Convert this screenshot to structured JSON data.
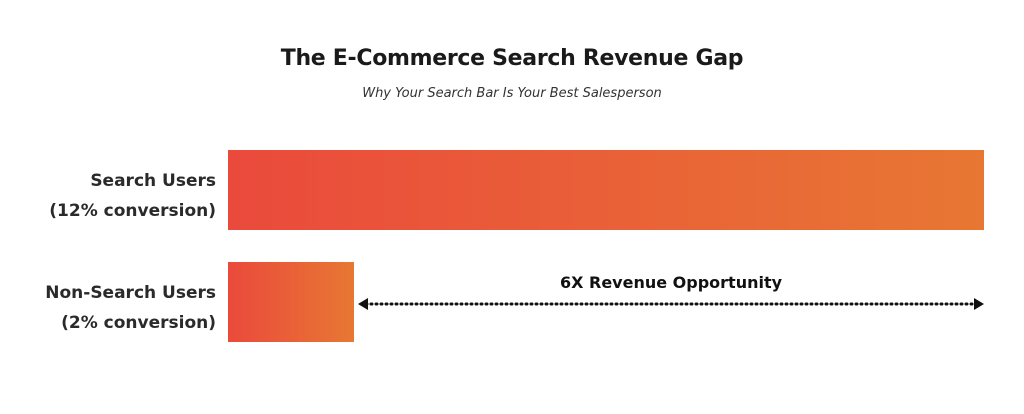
{
  "chart_data": {
    "type": "bar",
    "orientation": "horizontal",
    "title": "The E-Commerce Search Revenue Gap",
    "subtitle": "Why Your Search Bar Is Your Best Salesperson",
    "categories": [
      {
        "name": "Search Users",
        "detail": "(12% conversion)"
      },
      {
        "name": "Non-Search Users",
        "detail": "(2% conversion)"
      }
    ],
    "values": [
      12,
      2
    ],
    "unit": "% conversion",
    "xlim": [
      0,
      12
    ],
    "grid": false,
    "legend": "none",
    "annotation": {
      "text": "6X Revenue Opportunity",
      "type": "double-arrow"
    },
    "colors": {
      "gradient_start": "#ea4a3c",
      "gradient_end": "#e87733"
    }
  }
}
